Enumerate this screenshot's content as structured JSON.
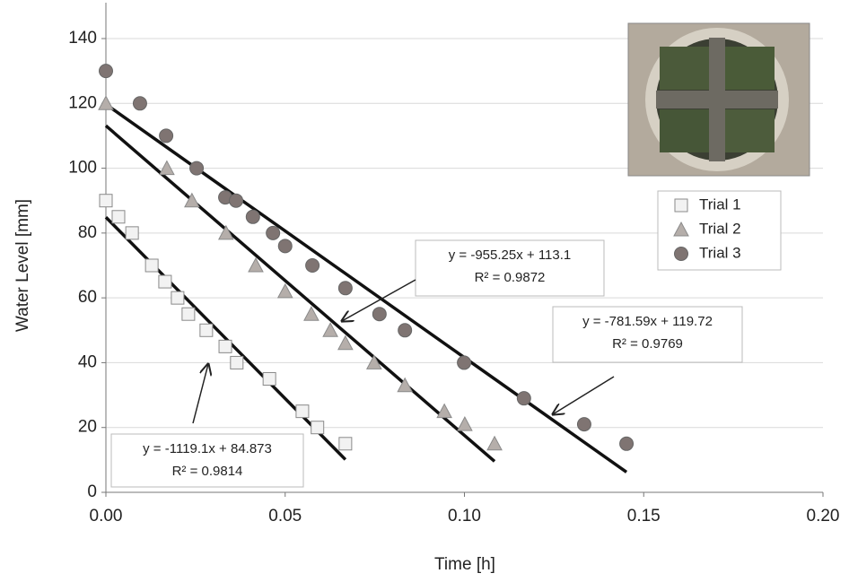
{
  "chart_data": {
    "type": "scatter",
    "x_label": "Time [h]",
    "y_label": "Water Level [mm]",
    "xlim": [
      0,
      0.2
    ],
    "ylim": [
      0,
      140
    ],
    "xticks": [
      {
        "value": 0,
        "label": "0.00"
      },
      {
        "value": 0.05,
        "label": "0.05"
      },
      {
        "value": 0.1,
        "label": "0.10"
      },
      {
        "value": 0.15,
        "label": "0.15"
      },
      {
        "value": 0.2,
        "label": "0.20"
      }
    ],
    "yticks": [
      0,
      20,
      40,
      60,
      80,
      100,
      120,
      140
    ],
    "grid": true,
    "legend": "upper right",
    "series": [
      {
        "name": "Trial 1",
        "marker": "square",
        "color": "#f2f2f2",
        "x": [
          0,
          0.0035,
          0.0073,
          0.0128,
          0.0165,
          0.02,
          0.023,
          0.028,
          0.0333,
          0.0365,
          0.0456,
          0.0548,
          0.059,
          0.0668
        ],
        "values": [
          90,
          85,
          80,
          70,
          65,
          60,
          55,
          50,
          45,
          40,
          35,
          25,
          20,
          15
        ],
        "trendline": {
          "slope": -1119.1,
          "intercept": 84.873
        }
      },
      {
        "name": "Trial 2",
        "marker": "triangle",
        "color": "#b5aeaa",
        "x": [
          0,
          0.017,
          0.024,
          0.0335,
          0.0418,
          0.05,
          0.0573,
          0.0626,
          0.0668,
          0.0748,
          0.0834,
          0.0944,
          0.1001,
          0.1084
        ],
        "values": [
          120,
          100,
          90,
          80,
          70,
          62,
          55,
          50,
          46,
          40,
          33,
          25,
          21,
          15
        ],
        "trendline": {
          "slope": -955.25,
          "intercept": 113.1
        }
      },
      {
        "name": "Trial 3",
        "marker": "circle",
        "color": "#7f7472",
        "x": [
          0,
          0.0095,
          0.0168,
          0.0253,
          0.0333,
          0.0363,
          0.041,
          0.0466,
          0.05,
          0.0576,
          0.0668,
          0.0763,
          0.0834,
          0.0999,
          0.1166,
          0.1334,
          0.1452
        ],
        "values": [
          130,
          120,
          110,
          100,
          91,
          90,
          85,
          80,
          76,
          70,
          63,
          55,
          50,
          40,
          29,
          21,
          15
        ],
        "trendline": {
          "slope": -781.59,
          "intercept": 119.72
        }
      }
    ],
    "annotations": [
      {
        "equation": "y = -1119.1x + 84.873",
        "r2": "R² = 0.9814"
      },
      {
        "equation": "y = -955.25x + 113.1",
        "r2": "R² = 0.9872"
      },
      {
        "equation": "y = -781.59x + 119.72",
        "r2": "R² = 0.9769"
      }
    ]
  }
}
